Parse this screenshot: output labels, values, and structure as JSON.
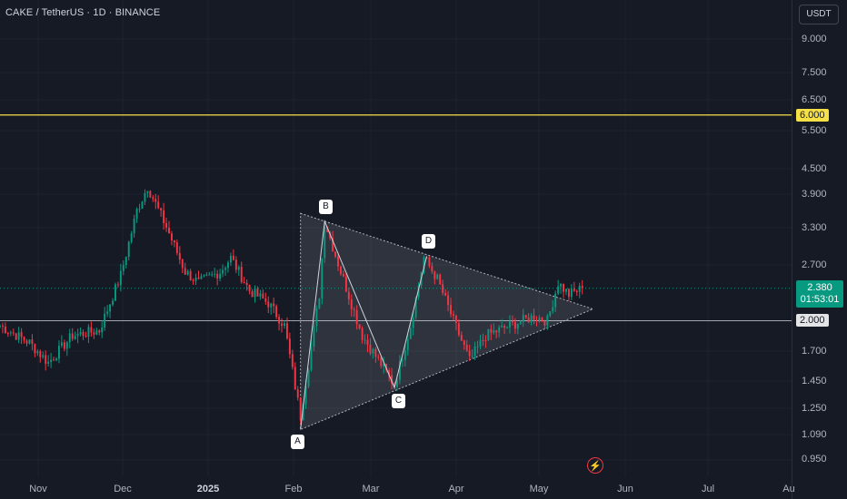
{
  "header": {
    "symbol_line": "CAKE / TetherUS · 1D · BINANCE"
  },
  "currency_button": {
    "label": "USDT"
  },
  "price_axis": {
    "ticks": [
      "9.000",
      "7.500",
      "6.500",
      "5.500",
      "4.500",
      "3.900",
      "3.300",
      "2.700",
      "1.700",
      "1.450",
      "1.250",
      "1.090",
      "0.950"
    ]
  },
  "time_axis": {
    "ticks": [
      "Nov",
      "Dec",
      "2025",
      "Feb",
      "Mar",
      "Apr",
      "May",
      "Jun",
      "Jul",
      "Au"
    ]
  },
  "price_tags": {
    "resistance": "6.000",
    "support": "2.000",
    "last_price": "2.380",
    "countdown": "01:53:01"
  },
  "pattern_points": {
    "a": "A",
    "b": "B",
    "c": "C",
    "d": "D"
  },
  "colors": {
    "background": "#161a25",
    "bull": "#089981",
    "bear": "#f23645",
    "resistance_line": "#f7e046",
    "support_line": "#d1d4dc"
  },
  "icons": {
    "alert": "lightning-icon"
  },
  "chart_data": {
    "type": "candlestick",
    "title": "CAKE / TetherUS · 1D · BINANCE",
    "y_scale": "log",
    "ylim": [
      0.9,
      10.5
    ],
    "x_range": [
      "2024-10-14",
      "2025-08-05"
    ],
    "close_path": [
      {
        "date": "2024-10-14",
        "close": 1.95
      },
      {
        "date": "2024-10-25",
        "close": 1.78
      },
      {
        "date": "2024-11-01",
        "close": 1.6
      },
      {
        "date": "2024-11-10",
        "close": 1.85
      },
      {
        "date": "2024-11-20",
        "close": 1.9
      },
      {
        "date": "2024-11-28",
        "close": 2.55
      },
      {
        "date": "2024-12-04",
        "close": 3.6
      },
      {
        "date": "2024-12-08",
        "close": 4.1
      },
      {
        "date": "2024-12-15",
        "close": 3.3
      },
      {
        "date": "2024-12-22",
        "close": 2.6
      },
      {
        "date": "2024-12-27",
        "close": 2.45
      },
      {
        "date": "2025-01-04",
        "close": 2.6
      },
      {
        "date": "2025-01-08",
        "close": 2.8
      },
      {
        "date": "2025-01-15",
        "close": 2.35
      },
      {
        "date": "2025-01-22",
        "close": 2.2
      },
      {
        "date": "2025-01-28",
        "close": 1.95
      },
      {
        "date": "2025-02-03",
        "close": 1.2
      },
      {
        "date": "2025-02-10",
        "close": 2.3
      },
      {
        "date": "2025-02-12",
        "close": 3.4
      },
      {
        "date": "2025-02-18",
        "close": 2.6
      },
      {
        "date": "2025-02-26",
        "close": 1.85
      },
      {
        "date": "2025-03-10",
        "close": 1.42
      },
      {
        "date": "2025-03-16",
        "close": 1.95
      },
      {
        "date": "2025-03-21",
        "close": 2.8
      },
      {
        "date": "2025-03-26",
        "close": 2.5
      },
      {
        "date": "2025-04-01",
        "close": 2.0
      },
      {
        "date": "2025-04-07",
        "close": 1.62
      },
      {
        "date": "2025-04-13",
        "close": 1.85
      },
      {
        "date": "2025-04-22",
        "close": 1.95
      },
      {
        "date": "2025-05-01",
        "close": 2.05
      },
      {
        "date": "2025-05-06",
        "close": 2.0
      },
      {
        "date": "2025-05-10",
        "close": 2.45
      },
      {
        "date": "2025-05-14",
        "close": 2.3
      },
      {
        "date": "2025-05-19",
        "close": 2.38
      }
    ],
    "horizontal_lines": [
      {
        "price": 6.0,
        "color": "#f7e046"
      },
      {
        "price": 2.0,
        "color": "#d1d4dc"
      }
    ],
    "current_price": 2.38,
    "triangle_pattern": {
      "apex_start": {
        "date": "2025-02-03",
        "price": 3.55
      },
      "apex_end": {
        "date": "2025-05-23",
        "price": 2.13
      },
      "base_start": {
        "date": "2025-02-03",
        "price": 1.12
      }
    },
    "xabcd_points": [
      {
        "label": "A",
        "date": "2025-02-03",
        "price": 1.12
      },
      {
        "label": "B",
        "date": "2025-02-12",
        "price": 3.4
      },
      {
        "label": "C",
        "date": "2025-03-10",
        "price": 1.4
      },
      {
        "label": "D",
        "date": "2025-03-22",
        "price": 2.82
      }
    ]
  }
}
